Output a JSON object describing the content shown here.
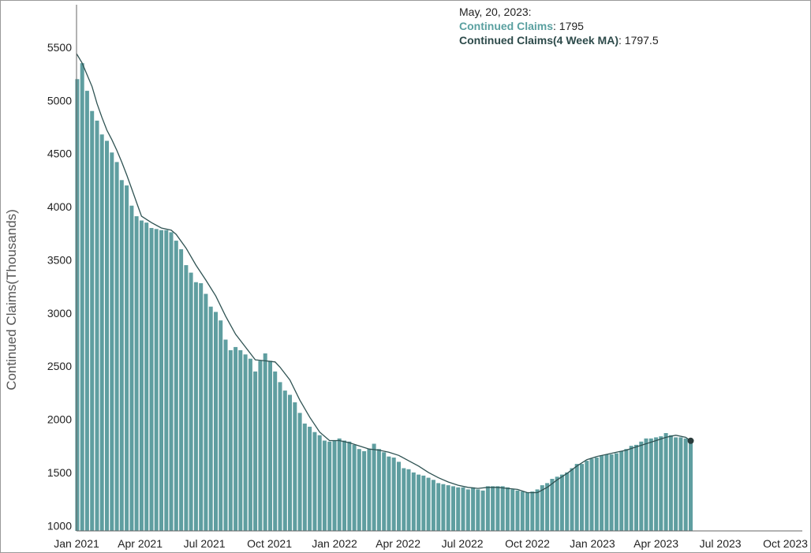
{
  "tooltip": {
    "date": "May, 20, 2023:",
    "series1_label": "Continued Claims",
    "series1_value": "1795",
    "series2_label": "Continued Claims(4 Week MA)",
    "series2_value": "1797.5"
  },
  "colors": {
    "bar": "#5f9ea0",
    "line": "#2f5353",
    "axis": "#666666"
  },
  "chart_data": {
    "type": "bar",
    "ylabel": "Continued Claims(Thousands)",
    "ylim": [
      950,
      5900
    ],
    "xlim": [
      "2021-01-01",
      "2023-10-25"
    ],
    "y_ticks": [
      1000,
      1500,
      2000,
      2500,
      3000,
      3500,
      4000,
      4500,
      5000,
      5500
    ],
    "x_ticks": [
      {
        "date": "2021-01-01",
        "label": "Jan 2021"
      },
      {
        "date": "2021-04-01",
        "label": "Apr 2021"
      },
      {
        "date": "2021-07-01",
        "label": "Jul 2021"
      },
      {
        "date": "2021-10-01",
        "label": "Oct 2021"
      },
      {
        "date": "2022-01-01",
        "label": "Jan 2022"
      },
      {
        "date": "2022-04-01",
        "label": "Apr 2022"
      },
      {
        "date": "2022-07-01",
        "label": "Jul 2022"
      },
      {
        "date": "2022-10-01",
        "label": "Oct 2022"
      },
      {
        "date": "2023-01-01",
        "label": "Jan 2023"
      },
      {
        "date": "2023-04-01",
        "label": "Apr 2023"
      },
      {
        "date": "2023-07-01",
        "label": "Jul 2023"
      },
      {
        "date": "2023-10-01",
        "label": "Oct 2023"
      }
    ],
    "series": [
      {
        "name": "Continued Claims",
        "x": [
          "2021-01-02",
          "2021-01-09",
          "2021-01-16",
          "2021-01-23",
          "2021-01-30",
          "2021-02-06",
          "2021-02-13",
          "2021-02-20",
          "2021-02-27",
          "2021-03-06",
          "2021-03-13",
          "2021-03-20",
          "2021-03-27",
          "2021-04-03",
          "2021-04-10",
          "2021-04-17",
          "2021-04-24",
          "2021-05-01",
          "2021-05-08",
          "2021-05-15",
          "2021-05-22",
          "2021-05-29",
          "2021-06-05",
          "2021-06-12",
          "2021-06-19",
          "2021-06-26",
          "2021-07-03",
          "2021-07-10",
          "2021-07-17",
          "2021-07-24",
          "2021-07-31",
          "2021-08-07",
          "2021-08-14",
          "2021-08-21",
          "2021-08-28",
          "2021-09-04",
          "2021-09-11",
          "2021-09-18",
          "2021-09-25",
          "2021-10-02",
          "2021-10-09",
          "2021-10-16",
          "2021-10-23",
          "2021-10-30",
          "2021-11-06",
          "2021-11-13",
          "2021-11-20",
          "2021-11-27",
          "2021-12-04",
          "2021-12-11",
          "2021-12-18",
          "2021-12-25",
          "2022-01-01",
          "2022-01-08",
          "2022-01-15",
          "2022-01-22",
          "2022-01-29",
          "2022-02-05",
          "2022-02-12",
          "2022-02-19",
          "2022-02-26",
          "2022-03-05",
          "2022-03-12",
          "2022-03-19",
          "2022-03-26",
          "2022-04-02",
          "2022-04-09",
          "2022-04-16",
          "2022-04-23",
          "2022-04-30",
          "2022-05-07",
          "2022-05-14",
          "2022-05-21",
          "2022-05-28",
          "2022-06-04",
          "2022-06-11",
          "2022-06-18",
          "2022-06-25",
          "2022-07-02",
          "2022-07-09",
          "2022-07-16",
          "2022-07-23",
          "2022-07-30",
          "2022-08-06",
          "2022-08-13",
          "2022-08-20",
          "2022-08-27",
          "2022-09-03",
          "2022-09-10",
          "2022-09-17",
          "2022-09-24",
          "2022-10-01",
          "2022-10-08",
          "2022-10-15",
          "2022-10-22",
          "2022-10-29",
          "2022-11-05",
          "2022-11-12",
          "2022-11-19",
          "2022-11-26",
          "2022-12-03",
          "2022-12-10",
          "2022-12-17",
          "2022-12-24",
          "2022-12-31",
          "2023-01-07",
          "2023-01-14",
          "2023-01-21",
          "2023-01-28",
          "2023-02-04",
          "2023-02-11",
          "2023-02-18",
          "2023-02-25",
          "2023-03-04",
          "2023-03-11",
          "2023-03-18",
          "2023-03-25",
          "2023-04-01",
          "2023-04-08",
          "2023-04-15",
          "2023-04-22",
          "2023-04-29",
          "2023-05-06",
          "2023-05-13",
          "2023-05-20"
        ],
        "values": [
          5200,
          5350,
          5090,
          4900,
          4810,
          4680,
          4620,
          4510,
          4420,
          4250,
          4200,
          4010,
          3910,
          3870,
          3850,
          3800,
          3790,
          3780,
          3780,
          3760,
          3680,
          3600,
          3450,
          3380,
          3290,
          3280,
          3180,
          3060,
          3010,
          2930,
          2750,
          2650,
          2680,
          2650,
          2610,
          2570,
          2450,
          2550,
          2620,
          2550,
          2450,
          2350,
          2270,
          2230,
          2160,
          2060,
          1960,
          1930,
          1880,
          1850,
          1800,
          1790,
          1800,
          1820,
          1800,
          1790,
          1760,
          1720,
          1700,
          1720,
          1770,
          1720,
          1690,
          1650,
          1640,
          1600,
          1540,
          1530,
          1500,
          1480,
          1470,
          1450,
          1430,
          1400,
          1390,
          1380,
          1370,
          1360,
          1360,
          1340,
          1360,
          1340,
          1330,
          1370,
          1370,
          1370,
          1370,
          1360,
          1340,
          1330,
          1320,
          1310,
          1320,
          1340,
          1380,
          1400,
          1440,
          1460,
          1480,
          1500,
          1540,
          1580,
          1580,
          1610,
          1630,
          1640,
          1660,
          1670,
          1670,
          1680,
          1700,
          1720,
          1750,
          1760,
          1790,
          1820,
          1820,
          1830,
          1840,
          1870,
          1850,
          1830,
          1830,
          1820,
          1795
        ]
      },
      {
        "name": "Continued Claims(4 Week MA)",
        "x": [
          "2021-01-01",
          "2021-01-09",
          "2021-01-16",
          "2021-01-23",
          "2021-01-30",
          "2021-02-06",
          "2021-02-13",
          "2021-02-20",
          "2021-02-27",
          "2021-03-06",
          "2021-03-13",
          "2021-03-20",
          "2021-03-27",
          "2021-04-03",
          "2021-04-17",
          "2021-05-01",
          "2021-05-15",
          "2021-05-22",
          "2021-06-05",
          "2021-06-19",
          "2021-07-03",
          "2021-07-17",
          "2021-07-31",
          "2021-08-14",
          "2021-08-28",
          "2021-09-11",
          "2021-09-25",
          "2021-10-09",
          "2021-10-16",
          "2021-10-30",
          "2021-11-13",
          "2021-11-27",
          "2021-12-11",
          "2021-12-25",
          "2022-01-08",
          "2022-01-22",
          "2022-02-05",
          "2022-02-19",
          "2022-03-05",
          "2022-03-19",
          "2022-04-02",
          "2022-04-16",
          "2022-04-30",
          "2022-05-14",
          "2022-05-28",
          "2022-06-11",
          "2022-06-25",
          "2022-07-09",
          "2022-07-23",
          "2022-08-06",
          "2022-08-20",
          "2022-09-03",
          "2022-09-17",
          "2022-10-01",
          "2022-10-15",
          "2022-10-29",
          "2022-11-12",
          "2022-11-26",
          "2022-12-10",
          "2022-12-24",
          "2023-01-07",
          "2023-01-21",
          "2023-02-04",
          "2023-02-18",
          "2023-03-04",
          "2023-03-18",
          "2023-04-01",
          "2023-04-15",
          "2023-04-29",
          "2023-05-13",
          "2023-05-20"
        ],
        "values": [
          5440,
          5350,
          5240,
          5130,
          4970,
          4840,
          4720,
          4630,
          4530,
          4420,
          4300,
          4170,
          4040,
          3910,
          3850,
          3800,
          3780,
          3740,
          3610,
          3450,
          3310,
          3160,
          2970,
          2800,
          2680,
          2560,
          2550,
          2540,
          2490,
          2370,
          2180,
          2020,
          1880,
          1800,
          1800,
          1780,
          1750,
          1720,
          1710,
          1690,
          1660,
          1610,
          1560,
          1500,
          1450,
          1410,
          1380,
          1360,
          1350,
          1360,
          1360,
          1350,
          1340,
          1310,
          1310,
          1360,
          1430,
          1490,
          1560,
          1620,
          1650,
          1670,
          1690,
          1710,
          1740,
          1770,
          1800,
          1830,
          1850,
          1830,
          1797.5
        ]
      }
    ]
  }
}
